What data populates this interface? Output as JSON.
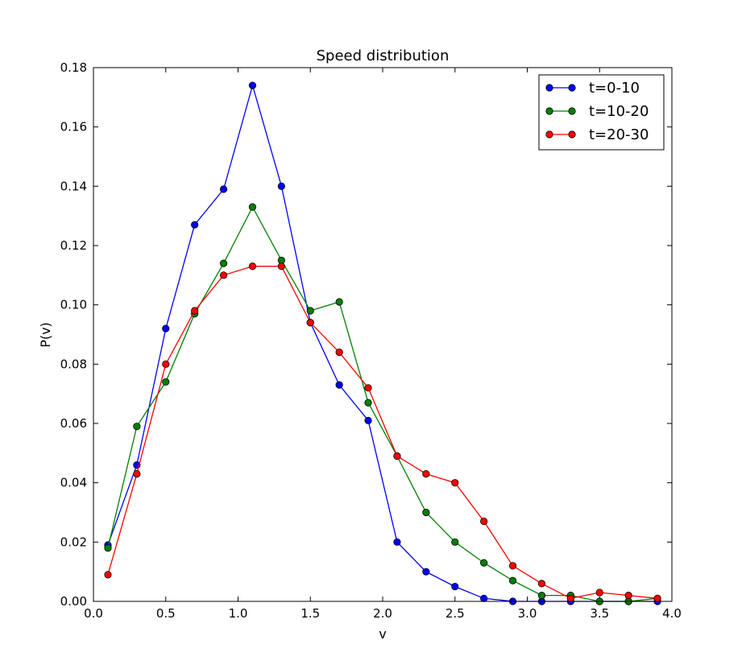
{
  "chart_data": {
    "type": "line",
    "title": "Speed distribution",
    "xlabel": "v",
    "ylabel": "P(v)",
    "xlim": [
      0.0,
      4.0
    ],
    "ylim": [
      0.0,
      0.18
    ],
    "x_ticks": [
      "0.0",
      "0.5",
      "1.0",
      "1.5",
      "2.0",
      "2.5",
      "3.0",
      "3.5",
      "4.0"
    ],
    "y_ticks": [
      "0.00",
      "0.02",
      "0.04",
      "0.06",
      "0.08",
      "0.10",
      "0.12",
      "0.14",
      "0.16",
      "0.18"
    ],
    "grid": false,
    "legend_position": "top-right",
    "x": [
      0.1,
      0.3,
      0.5,
      0.7,
      0.9,
      1.1,
      1.3,
      1.5,
      1.7,
      1.9,
      2.1,
      2.3,
      2.5,
      2.7,
      2.9,
      3.1,
      3.3,
      3.5,
      3.7,
      3.9
    ],
    "series": [
      {
        "name": "t=0-10",
        "color": "#0000ff",
        "values": [
          0.019,
          0.046,
          0.092,
          0.127,
          0.139,
          0.174,
          0.14,
          0.094,
          0.073,
          0.061,
          0.02,
          0.01,
          0.005,
          0.001,
          0.0,
          0.0,
          0.0,
          0.0,
          0.0,
          0.0
        ]
      },
      {
        "name": "t=10-20",
        "color": "#008000",
        "values": [
          0.018,
          0.059,
          0.074,
          0.097,
          0.114,
          0.133,
          0.115,
          0.098,
          0.101,
          0.067,
          0.049,
          0.03,
          0.02,
          0.013,
          0.007,
          0.002,
          0.002,
          0.0,
          0.0,
          0.001
        ]
      },
      {
        "name": "t=20-30",
        "color": "#ff0000",
        "values": [
          0.009,
          0.043,
          0.08,
          0.098,
          0.11,
          0.113,
          0.113,
          0.094,
          0.084,
          0.072,
          0.049,
          0.043,
          0.04,
          0.027,
          0.012,
          0.006,
          0.001,
          0.003,
          0.002,
          0.001
        ]
      }
    ]
  }
}
